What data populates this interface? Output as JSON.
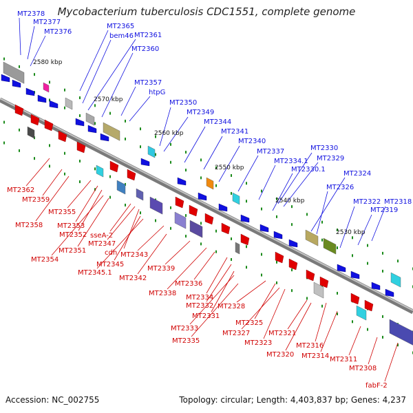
{
  "title": "Mycobacterium tuberculosis CDC1551, complete genome",
  "footer": {
    "accession_label": "Accession:",
    "accession": "NC_002755",
    "summary": "Topology: circular; Length: 4,403,837 bp; Genes: 4,237"
  },
  "kbp_labels": [
    "2580 kbp",
    "2570 kbp",
    "2560 kbp",
    "2550 kbp",
    "2540 kbp",
    "2530 kbp"
  ],
  "top_genes": [
    "MT2378",
    "MT2377",
    "MT2376",
    "MT2365",
    "bem46",
    "MT2361",
    "MT2360",
    "MT2357",
    "htpG",
    "MT2350",
    "MT2349",
    "MT2344",
    "MT2341",
    "MT2340",
    "MT2337",
    "MT2334.1",
    "MT2330",
    "MT2329",
    "MT2330.1",
    "MT2324",
    "MT2326",
    "MT2322",
    "MT2318",
    "MT2319"
  ],
  "bottom_genes": [
    "MT2362",
    "MT2359",
    "MT2358",
    "MT2355",
    "MT2353",
    "MT2352",
    "MT2354",
    "MT2351",
    "sseA-2",
    "MT2347",
    "cdh",
    "MT2345",
    "MT2345.1",
    "MT2343",
    "MT2342",
    "MT2339",
    "MT2338",
    "MT2336",
    "MT2334",
    "MT2332",
    "MT2331",
    "MT2333",
    "MT2328",
    "MT2335",
    "MT2325",
    "MT2327",
    "MT2323",
    "MT2321",
    "MT2320",
    "MT2316",
    "MT2314",
    "MT2311",
    "MT2308",
    "fabF-2"
  ],
  "colors": {
    "forward": "#1010e0",
    "reverse": "#e00000",
    "backbone": "#8a8a8a",
    "tick": "#1a8a1a"
  }
}
